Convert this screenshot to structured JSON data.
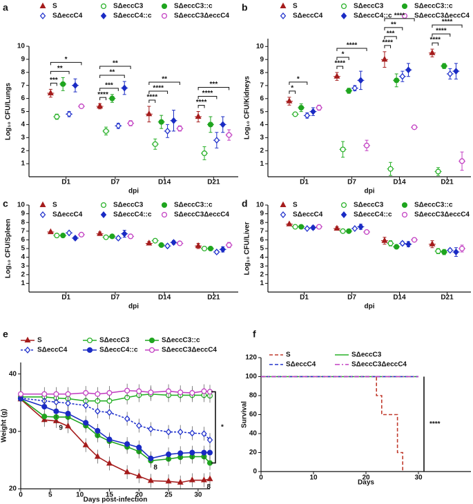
{
  "chart_data": [
    {
      "type": "dot",
      "label": "a",
      "y_label": "Log₁₀ CFU/Lungs",
      "x_label": "dpi",
      "categories": [
        "D1",
        "D7",
        "D14",
        "D21"
      ],
      "ylim": [
        0,
        10
      ],
      "yticks": [
        1,
        2,
        3,
        4,
        5,
        6,
        7,
        8,
        9,
        10
      ],
      "series": [
        {
          "name": "S",
          "color": "#a51c1c",
          "marker": "triangle",
          "filled": true,
          "values": [
            6.4,
            5.4,
            4.8,
            4.6
          ],
          "errors": [
            0.3,
            0.2,
            0.6,
            0.4
          ]
        },
        {
          "name": "SΔeccC3",
          "color": "#27b027",
          "marker": "circle",
          "filled": false,
          "values": [
            4.6,
            3.5,
            2.5,
            1.8
          ],
          "errors": [
            0.2,
            0.3,
            0.4,
            0.5
          ]
        },
        {
          "name": "SΔeccC3::c",
          "color": "#1fa51f",
          "marker": "circle",
          "filled": true,
          "values": [
            7.1,
            6.0,
            4.2,
            4.0
          ],
          "errors": [
            0.5,
            0.3,
            0.5,
            0.6
          ]
        },
        {
          "name": "SΔeccC4",
          "color": "#2233cc",
          "marker": "diamond",
          "filled": false,
          "values": [
            4.8,
            3.9,
            3.5,
            2.8
          ],
          "errors": [
            0.2,
            0.2,
            0.5,
            0.6
          ]
        },
        {
          "name": "SΔeccC4::c",
          "color": "#1a2bc4",
          "marker": "diamond",
          "filled": true,
          "values": [
            7.0,
            6.8,
            4.3,
            4.0
          ],
          "errors": [
            0.5,
            0.5,
            0.8,
            0.6
          ]
        },
        {
          "name": "SΔeccC3ΔeccC4",
          "color": "#c23fc2",
          "marker": "circle",
          "filled": false,
          "values": [
            5.4,
            4.1,
            3.7,
            3.2
          ],
          "errors": [
            0.1,
            0.2,
            0.2,
            0.4
          ]
        }
      ],
      "significance": [
        {
          "label": "***",
          "category": 0,
          "series": [
            0,
            1
          ]
        },
        {
          "label": "**",
          "category": 0,
          "series": [
            0,
            3
          ]
        },
        {
          "label": "*",
          "category": 0,
          "series": [
            0,
            5
          ]
        },
        {
          "label": "****",
          "category": 1,
          "series": [
            0,
            1
          ]
        },
        {
          "label": "***",
          "category": 1,
          "series": [
            0,
            3
          ]
        },
        {
          "label": "**",
          "category": 1,
          "series": [
            0,
            4
          ]
        },
        {
          "label": "**",
          "category": 1,
          "series": [
            0,
            5
          ]
        },
        {
          "label": "****",
          "category": 2,
          "series": [
            0,
            1
          ]
        },
        {
          "label": "****",
          "category": 2,
          "series": [
            0,
            3
          ]
        },
        {
          "label": "**",
          "category": 2,
          "series": [
            0,
            5
          ]
        },
        {
          "label": "****",
          "category": 3,
          "series": [
            0,
            1
          ]
        },
        {
          "label": "****",
          "category": 3,
          "series": [
            0,
            3
          ]
        },
        {
          "label": "***",
          "category": 3,
          "series": [
            0,
            5
          ]
        }
      ]
    },
    {
      "type": "dot",
      "label": "b",
      "y_label": "Log₁₀ CFU/Kidneys",
      "x_label": "dpi",
      "categories": [
        "D1",
        "D7",
        "D14",
        "D21"
      ],
      "ylim": [
        0,
        10.6
      ],
      "yticks": [
        1,
        2,
        3,
        4,
        5,
        6,
        7,
        8,
        9,
        10
      ],
      "series": [
        {
          "name": "S",
          "color": "#a51c1c",
          "marker": "triangle",
          "filled": true,
          "values": [
            5.8,
            7.7,
            9.0,
            9.5
          ],
          "errors": [
            0.3,
            0.3,
            0.6,
            0.3
          ]
        },
        {
          "name": "SΔeccC3",
          "color": "#27b027",
          "marker": "circle",
          "filled": false,
          "values": [
            4.8,
            2.1,
            0.6,
            0.4
          ],
          "errors": [
            0.1,
            0.6,
            0.5,
            0.3
          ]
        },
        {
          "name": "SΔeccC3::c",
          "color": "#1fa51f",
          "marker": "circle",
          "filled": true,
          "values": [
            5.3,
            6.6,
            7.4,
            8.5
          ],
          "errors": [
            0.3,
            0.2,
            0.5,
            0.2
          ]
        },
        {
          "name": "SΔeccC4",
          "color": "#2233cc",
          "marker": "diamond",
          "filled": false,
          "values": [
            4.7,
            6.8,
            7.7,
            7.9
          ],
          "errors": [
            0.2,
            0.2,
            0.4,
            0.4
          ]
        },
        {
          "name": "SΔeccC4::c",
          "color": "#1a2bc4",
          "marker": "diamond",
          "filled": true,
          "values": [
            5.0,
            7.4,
            8.2,
            8.1
          ],
          "errors": [
            0.3,
            0.7,
            0.5,
            0.6
          ]
        },
        {
          "name": "SΔeccC3ΔeccC4",
          "color": "#c23fc2",
          "marker": "circle",
          "filled": false,
          "values": [
            5.3,
            2.4,
            3.8,
            1.2
          ],
          "errors": [
            0.2,
            0.4,
            0.1,
            0.7
          ]
        }
      ],
      "significance": [
        {
          "label": "*",
          "category": 0,
          "series": [
            0,
            1
          ]
        },
        {
          "label": "*",
          "category": 0,
          "series": [
            0,
            3
          ]
        },
        {
          "label": "****",
          "category": 1,
          "series": [
            0,
            1
          ]
        },
        {
          "label": "*",
          "category": 1,
          "series": [
            0,
            2
          ]
        },
        {
          "label": "****",
          "category": 1,
          "series": [
            0,
            5
          ]
        },
        {
          "label": "****",
          "category": 2,
          "series": [
            0,
            1
          ]
        },
        {
          "label": "***",
          "category": 2,
          "series": [
            0,
            2
          ]
        },
        {
          "label": "**",
          "category": 2,
          "series": [
            0,
            3
          ]
        },
        {
          "label": "****",
          "category": 2,
          "series": [
            0,
            5
          ]
        },
        {
          "label": "****",
          "category": 3,
          "series": [
            0,
            1
          ]
        },
        {
          "label": "****",
          "category": 3,
          "series": [
            0,
            3
          ]
        },
        {
          "label": "****",
          "category": 3,
          "series": [
            0,
            5
          ]
        }
      ]
    },
    {
      "type": "dot",
      "label": "c",
      "y_label": "Log₁₀ CFU/Spleen",
      "x_label": "dpi",
      "categories": [
        "D1",
        "D7",
        "D14",
        "D21"
      ],
      "ylim": [
        0,
        10
      ],
      "yticks": [
        1,
        2,
        3,
        4,
        5,
        6,
        7,
        8,
        9,
        10
      ],
      "series": [
        {
          "name": "S",
          "color": "#a51c1c",
          "marker": "triangle",
          "filled": true,
          "values": [
            6.9,
            6.7,
            5.6,
            5.3
          ],
          "errors": [
            0.1,
            0.2,
            0.2,
            0.3
          ]
        },
        {
          "name": "SΔeccC3",
          "color": "#27b027",
          "marker": "circle",
          "filled": false,
          "values": [
            6.5,
            6.3,
            5.9,
            5.0
          ],
          "errors": [
            0.2,
            0.2,
            0.1,
            0.2
          ]
        },
        {
          "name": "SΔeccC3::c",
          "color": "#1fa51f",
          "marker": "circle",
          "filled": true,
          "values": [
            6.5,
            6.4,
            5.4,
            5.0
          ],
          "errors": [
            0.2,
            0.2,
            0.1,
            0.2
          ]
        },
        {
          "name": "SΔeccC4",
          "color": "#2233cc",
          "marker": "diamond",
          "filled": false,
          "values": [
            6.8,
            6.2,
            5.3,
            4.6
          ],
          "errors": [
            0.1,
            0.2,
            0.2,
            0.2
          ]
        },
        {
          "name": "SΔeccC4::c",
          "color": "#1a2bc4",
          "marker": "diamond",
          "filled": true,
          "values": [
            6.2,
            6.7,
            5.7,
            4.9
          ],
          "errors": [
            0.2,
            0.4,
            0.2,
            0.3
          ]
        },
        {
          "name": "SΔeccC3ΔeccC4",
          "color": "#c23fc2",
          "marker": "circle",
          "filled": false,
          "values": [
            6.6,
            6.4,
            5.6,
            5.4
          ],
          "errors": [
            0.1,
            0.2,
            0.1,
            0.3
          ]
        }
      ]
    },
    {
      "type": "dot",
      "label": "d",
      "y_label": "Log₁₀ CFU/Liver",
      "x_label": "dpi",
      "categories": [
        "D1",
        "D7",
        "D14",
        "D21"
      ],
      "ylim": [
        0,
        10
      ],
      "yticks": [
        1,
        2,
        3,
        4,
        5,
        6,
        7,
        8,
        9,
        10
      ],
      "series": [
        {
          "name": "S",
          "color": "#a51c1c",
          "marker": "triangle",
          "filled": true,
          "values": [
            7.8,
            7.3,
            5.9,
            5.5
          ],
          "errors": [
            0.1,
            0.2,
            0.4,
            0.4
          ]
        },
        {
          "name": "SΔeccC3",
          "color": "#27b027",
          "marker": "circle",
          "filled": false,
          "values": [
            7.5,
            7.0,
            5.6,
            4.7
          ],
          "errors": [
            0.1,
            0.2,
            0.3,
            0.3
          ]
        },
        {
          "name": "SΔeccC3::c",
          "color": "#1fa51f",
          "marker": "circle",
          "filled": true,
          "values": [
            7.5,
            7.0,
            5.2,
            4.6
          ],
          "errors": [
            0.1,
            0.1,
            0.1,
            0.3
          ]
        },
        {
          "name": "SΔeccC4",
          "color": "#2233cc",
          "marker": "diamond",
          "filled": false,
          "values": [
            7.3,
            7.3,
            5.6,
            4.8
          ],
          "errors": [
            0.1,
            0.1,
            0.2,
            0.2
          ]
        },
        {
          "name": "SΔeccC4::c",
          "color": "#1a2bc4",
          "marker": "diamond",
          "filled": true,
          "values": [
            7.4,
            7.5,
            5.5,
            4.6
          ],
          "errors": [
            0.2,
            0.3,
            0.3,
            0.5
          ]
        },
        {
          "name": "SΔeccC3ΔeccC4",
          "color": "#c23fc2",
          "marker": "circle",
          "filled": false,
          "values": [
            7.5,
            6.9,
            6.0,
            5.0
          ],
          "errors": [
            0.1,
            0.1,
            0.1,
            0.4
          ]
        }
      ]
    },
    {
      "type": "line",
      "label": "e",
      "y_label": "Weight (g)",
      "x_label": "Days post-infection",
      "x": [
        0,
        4,
        6,
        8,
        11,
        13,
        15,
        18,
        20,
        22,
        25,
        27,
        29,
        31,
        32
      ],
      "xlim": [
        0,
        32
      ],
      "xticks": [
        0,
        5,
        10,
        15,
        20,
        25,
        30
      ],
      "ylim": [
        20,
        42
      ],
      "yticks": [
        20,
        30,
        40
      ],
      "series": [
        {
          "name": "S",
          "color": "#a51c1c",
          "marker": "triangle",
          "filled": true,
          "dash": false,
          "values": [
            35.6,
            32,
            31.8,
            30.9,
            27.6,
            25.6,
            24.4,
            22.9,
            22.2,
            21.4,
            21.3,
            21.1,
            21.5,
            21.5,
            21.7
          ]
        },
        {
          "name": "SΔeccC3",
          "color": "#27b027",
          "marker": "circle",
          "filled": false,
          "dash": false,
          "values": [
            36.0,
            36.0,
            35.8,
            35.7,
            35.3,
            35.3,
            35.3,
            35.9,
            36.3,
            36.5,
            36.3,
            36.3,
            36.3,
            36.3,
            36.2
          ]
        },
        {
          "name": "SΔeccC3::c",
          "color": "#1fa51f",
          "marker": "circle",
          "filled": true,
          "dash": false,
          "values": [
            35.7,
            32.6,
            32.5,
            32.5,
            31.0,
            29.3,
            28.3,
            27.3,
            26.5,
            24.9,
            25.2,
            25.5,
            25.6,
            25.6,
            24.5
          ]
        },
        {
          "name": "SΔeccC4",
          "color": "#2233cc",
          "marker": "diamond",
          "filled": false,
          "dash": true,
          "values": [
            35.8,
            35.3,
            35.1,
            34.9,
            34.5,
            33.5,
            33.3,
            32.2,
            31.0,
            30.4,
            29.9,
            29.9,
            29.7,
            29.6,
            28.5
          ]
        },
        {
          "name": "SΔeccC4::c",
          "color": "#1a2bc4",
          "marker": "circle",
          "filled": true,
          "dash": false,
          "values": [
            35.7,
            34.3,
            33.5,
            33.1,
            31.5,
            30.1,
            28.6,
            27.8,
            27.2,
            25.3,
            26.0,
            26.2,
            26.3,
            26.3,
            26.3
          ]
        },
        {
          "name": "SΔeccC3ΔeccC4",
          "color": "#c23fc2",
          "marker": "circle",
          "filled": false,
          "dash": false,
          "values": [
            36.5,
            36.5,
            36.5,
            36.5,
            36.7,
            36.5,
            36.7,
            37.1,
            37.0,
            36.8,
            37.0,
            36.8,
            36.7,
            37.0,
            36.9
          ]
        }
      ],
      "annotations": [
        {
          "text": "9",
          "series": 0,
          "index": 2
        },
        {
          "text": "8",
          "series": 2,
          "index": 9
        },
        {
          "text": "8",
          "series": 0,
          "index": 13
        }
      ],
      "significance": {
        "label": "*",
        "series": [
          5,
          2
        ]
      }
    },
    {
      "type": "survival",
      "label": "f",
      "y_label": "Survival",
      "x_label": "Days",
      "xlim": [
        0,
        40
      ],
      "xticks": [
        0,
        10,
        20,
        30
      ],
      "ylim": [
        0,
        120
      ],
      "yticks": [
        0,
        20,
        40,
        60,
        80,
        100,
        120
      ],
      "series": [
        {
          "name": "S",
          "color": "#c0392b",
          "style": "dash",
          "x": [
            0,
            22,
            22,
            23,
            23,
            26,
            26,
            27,
            27
          ],
          "values": [
            100,
            100,
            80,
            80,
            60,
            60,
            20,
            20,
            0
          ]
        },
        {
          "name": "SΔeccC3",
          "color": "#27b027",
          "style": "solid",
          "x": [
            0,
            30
          ],
          "values": [
            100,
            100
          ]
        },
        {
          "name": "SΔeccC4",
          "color": "#2233cc",
          "style": "dash",
          "x": [
            0,
            30
          ],
          "values": [
            100,
            100
          ]
        },
        {
          "name": "SΔeccC3ΔeccC4",
          "color": "#c23fc2",
          "style": "dashdot",
          "x": [
            0,
            30
          ],
          "values": [
            100,
            100
          ]
        }
      ],
      "significance": {
        "label": "****",
        "series": [
          1,
          0
        ]
      }
    }
  ]
}
